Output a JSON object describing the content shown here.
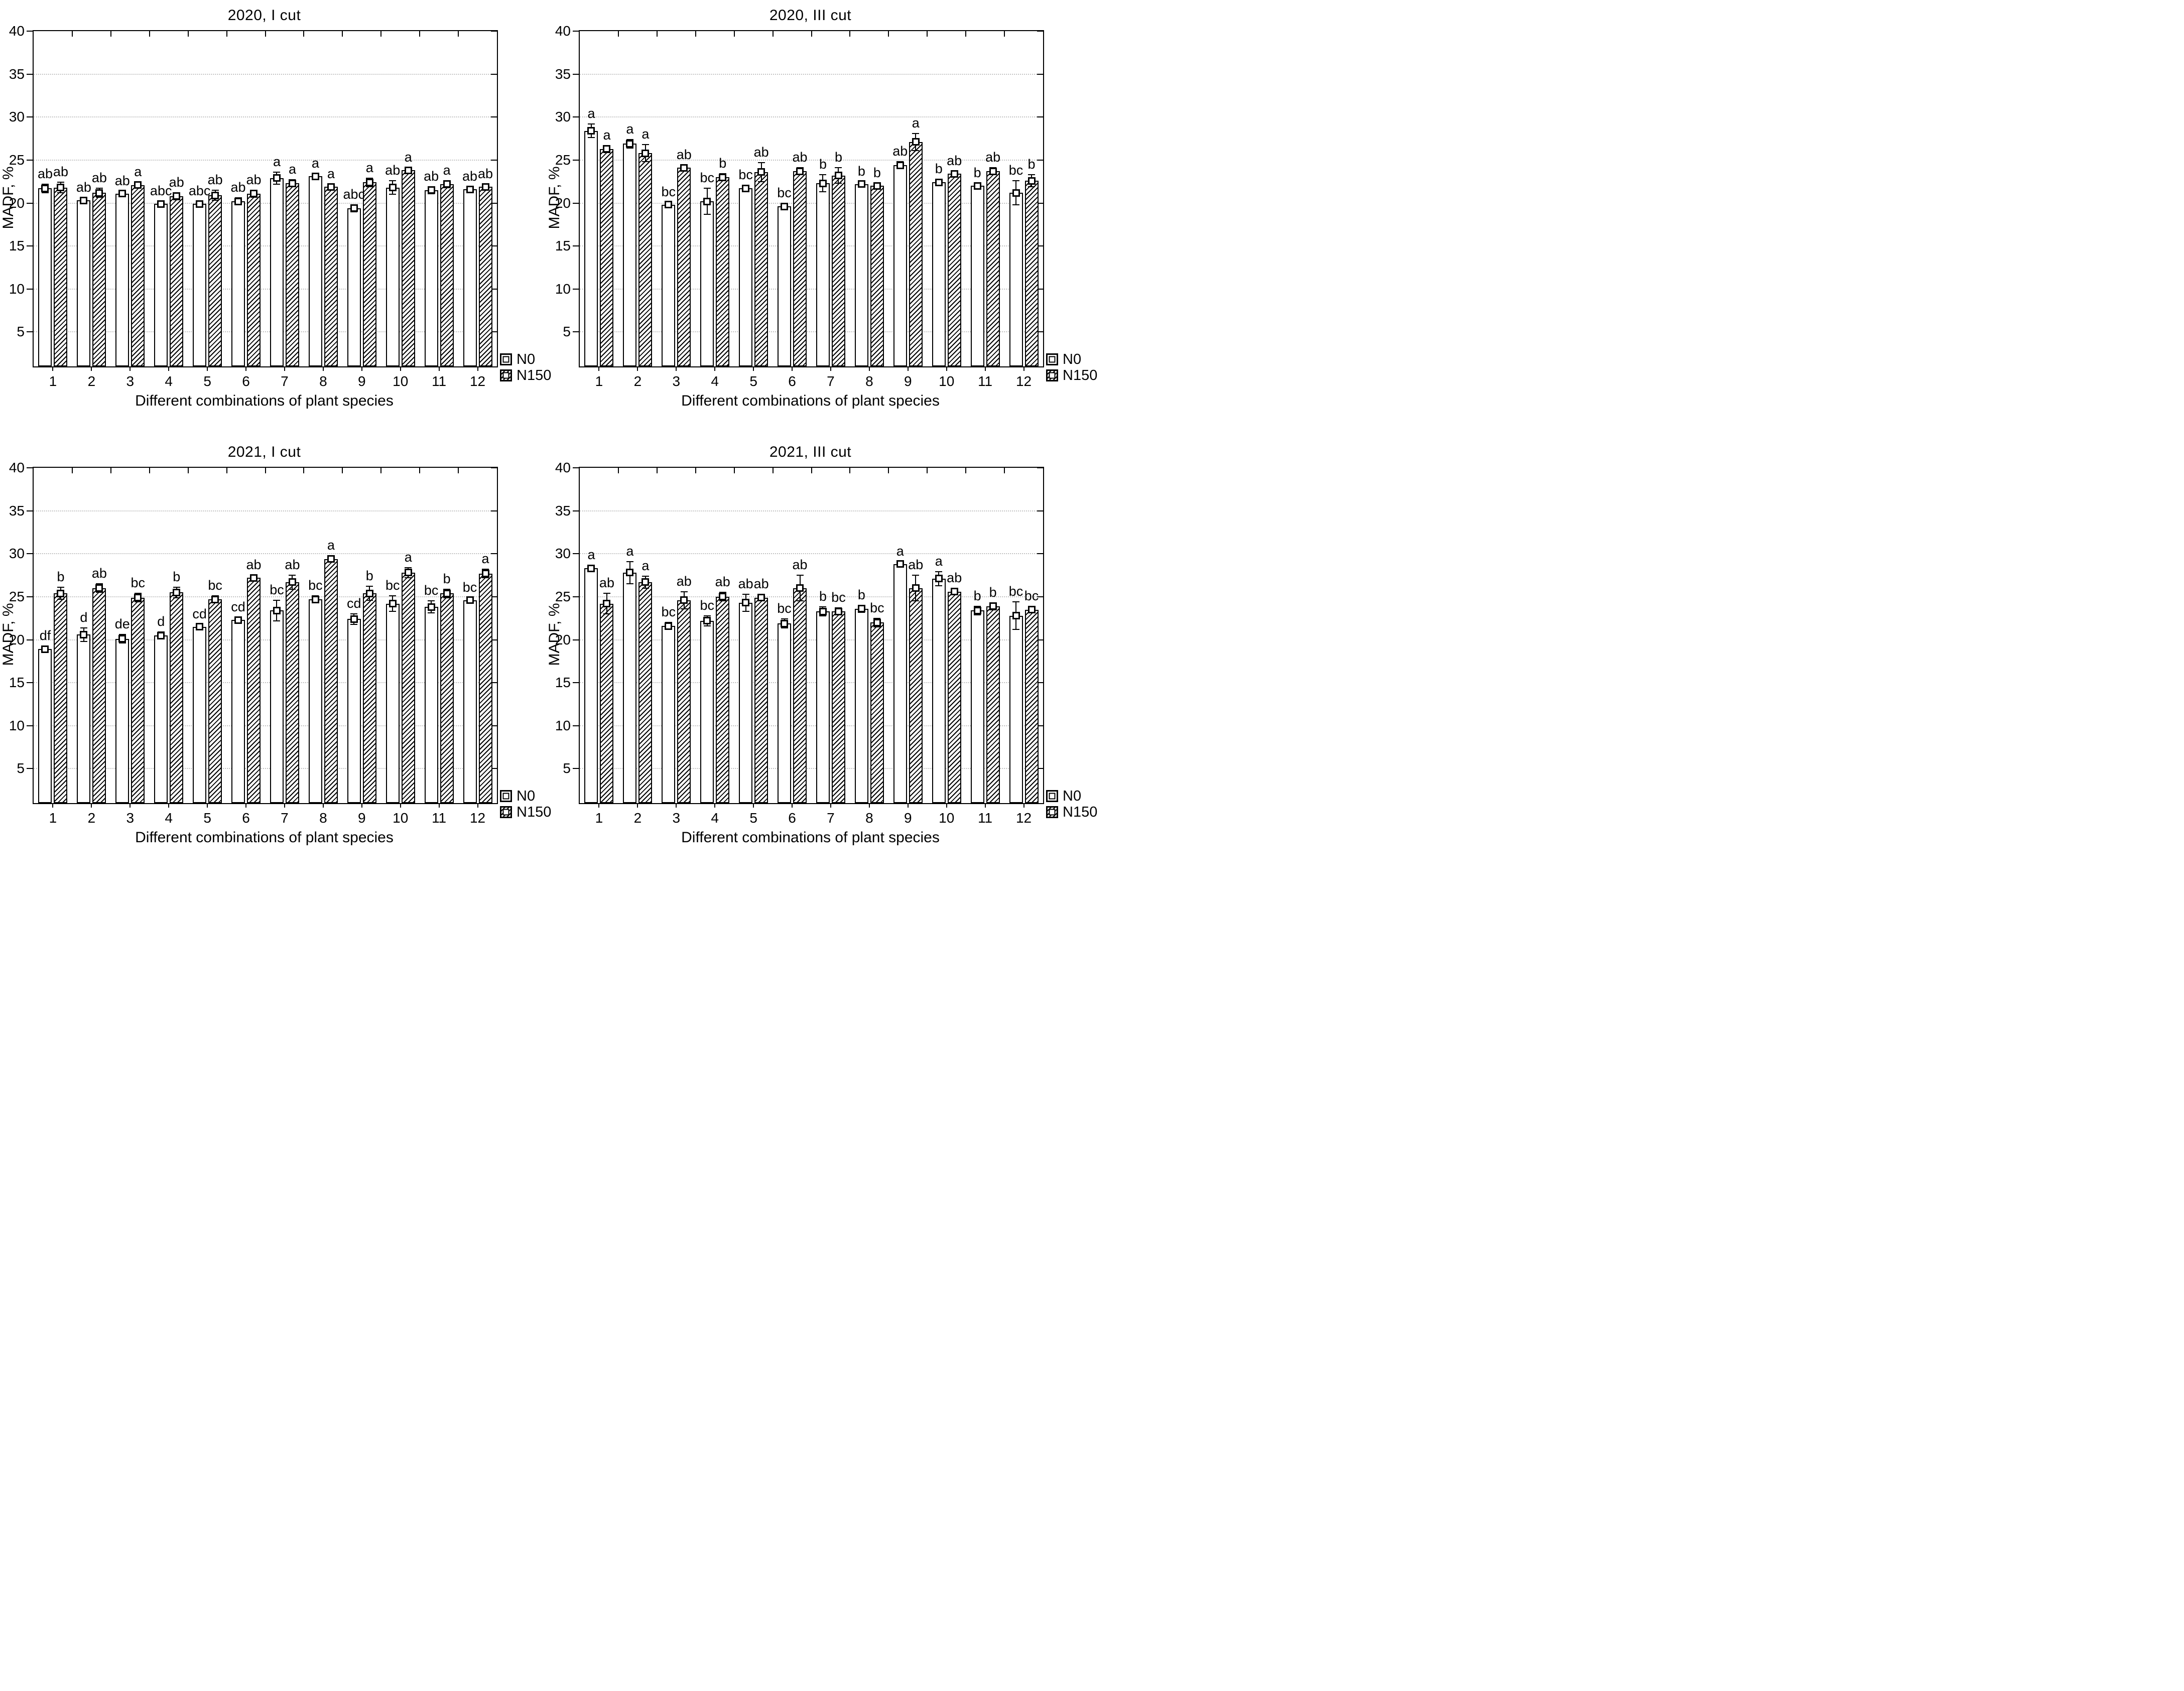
{
  "figure": {
    "y_axis_label": "MADF, %",
    "x_axis_label": "Different combinations of plant species",
    "y_ticks": [
      5,
      10,
      15,
      20,
      25,
      30,
      35,
      40
    ],
    "x_categories": [
      "1",
      "2",
      "3",
      "4",
      "5",
      "6",
      "7",
      "8",
      "9",
      "10",
      "11",
      "12"
    ],
    "legend": [
      {
        "label": "N0",
        "swatch": "open-square-marker"
      },
      {
        "label": "N150",
        "swatch": "hatched-square-marker"
      }
    ],
    "colors": {
      "bar_fill": "#ffffff",
      "bar_border": "#000000",
      "gridline": "#c2c2c2",
      "text": "#000000"
    }
  },
  "chart_data": [
    {
      "type": "bar",
      "title": "2020, I cut",
      "xlabel": "Different combinations of plant species",
      "ylabel": "MADF, %",
      "ylim": [
        1,
        40
      ],
      "grid": "horizontal-dotted",
      "legend_position": "bottom-right",
      "categories": [
        "1",
        "2",
        "3",
        "4",
        "5",
        "6",
        "7",
        "8",
        "9",
        "10",
        "11",
        "12"
      ],
      "series": [
        {
          "name": "N0",
          "values": [
            21.7,
            20.3,
            21.1,
            19.9,
            19.9,
            20.2,
            22.9,
            23.1,
            19.4,
            21.8,
            21.5,
            21.6
          ],
          "errors": [
            0.5,
            0.3,
            0.3,
            0.3,
            0.3,
            0.4,
            0.7,
            0.3,
            0.4,
            0.8,
            0.4,
            0.3
          ],
          "letters": [
            "ab",
            "ab",
            "ab",
            "abc",
            "abc",
            "ab",
            "a",
            "a",
            "abc",
            "ab",
            "ab",
            "ab"
          ]
        },
        {
          "name": "N150",
          "values": [
            21.8,
            21.2,
            22.1,
            20.8,
            20.9,
            21.1,
            22.3,
            21.9,
            22.4,
            23.8,
            22.2,
            21.9
          ],
          "errors": [
            0.6,
            0.5,
            0.3,
            0.4,
            0.6,
            0.4,
            0.4,
            0.3,
            0.5,
            0.3,
            0.4,
            0.3
          ],
          "letters": [
            "ab",
            "ab",
            "a",
            "ab",
            "ab",
            "ab",
            "a",
            "a",
            "a",
            "a",
            "a",
            "ab"
          ]
        }
      ]
    },
    {
      "type": "bar",
      "title": "2020, III cut",
      "xlabel": "Different combinations of plant species",
      "ylabel": "MADF, %",
      "ylim": [
        1,
        40
      ],
      "grid": "horizontal-dotted",
      "legend_position": "bottom-right",
      "categories": [
        "1",
        "2",
        "3",
        "4",
        "5",
        "6",
        "7",
        "8",
        "9",
        "10",
        "11",
        "12"
      ],
      "series": [
        {
          "name": "N0",
          "values": [
            28.4,
            26.9,
            19.8,
            20.2,
            21.7,
            19.6,
            22.3,
            22.2,
            24.4,
            22.4,
            22.0,
            21.2
          ],
          "errors": [
            0.8,
            0.5,
            0.3,
            1.5,
            0.4,
            0.4,
            1.0,
            0.3,
            0.4,
            0.4,
            0.3,
            1.4
          ],
          "letters": [
            "a",
            "a",
            "bc",
            "bc",
            "bc",
            "bc",
            "b",
            "b",
            "ab",
            "b",
            "b",
            "bc"
          ]
        },
        {
          "name": "N150",
          "values": [
            26.3,
            25.8,
            24.1,
            23.0,
            23.6,
            23.7,
            23.2,
            22.0,
            27.1,
            23.4,
            23.7,
            22.6
          ],
          "errors": [
            0.4,
            1.0,
            0.3,
            0.4,
            1.1,
            0.4,
            0.9,
            0.3,
            1.0,
            0.3,
            0.4,
            0.7
          ],
          "letters": [
            "a",
            "a",
            "ab",
            "b",
            "ab",
            "ab",
            "b",
            "b",
            "a",
            "ab",
            "ab",
            "b"
          ]
        }
      ]
    },
    {
      "type": "bar",
      "title": "2021, I cut",
      "xlabel": "Different combinations of plant species",
      "ylabel": "MADF, %",
      "ylim": [
        1,
        40
      ],
      "grid": "horizontal-dotted",
      "legend_position": "bottom-right",
      "categories": [
        "1",
        "2",
        "3",
        "4",
        "5",
        "6",
        "7",
        "8",
        "9",
        "10",
        "11",
        "12"
      ],
      "series": [
        {
          "name": "N0",
          "values": [
            18.9,
            20.6,
            20.1,
            20.5,
            21.5,
            22.3,
            23.4,
            24.7,
            22.4,
            24.2,
            23.8,
            24.6
          ],
          "errors": [
            0.4,
            0.8,
            0.5,
            0.4,
            0.3,
            0.3,
            1.2,
            0.4,
            0.6,
            0.9,
            0.7,
            0.3
          ],
          "letters": [
            "df",
            "d",
            "de",
            "d",
            "cd",
            "cd",
            "bc",
            "bc",
            "cd",
            "bc",
            "bc",
            "bc"
          ]
        },
        {
          "name": "N150",
          "values": [
            25.4,
            26.0,
            24.9,
            25.5,
            24.7,
            27.2,
            26.7,
            29.4,
            25.4,
            27.8,
            25.4,
            27.7
          ],
          "errors": [
            0.7,
            0.5,
            0.5,
            0.6,
            0.4,
            0.3,
            0.8,
            0.4,
            0.8,
            0.6,
            0.5,
            0.5
          ],
          "letters": [
            "b",
            "ab",
            "bc",
            "b",
            "bc",
            "ab",
            "ab",
            "a",
            "b",
            "a",
            "b",
            "a"
          ]
        }
      ]
    },
    {
      "type": "bar",
      "title": "2021, III cut",
      "xlabel": "Different combinations of plant species",
      "ylabel": "MADF, %",
      "ylim": [
        1,
        40
      ],
      "grid": "horizontal-dotted",
      "legend_position": "bottom-right",
      "categories": [
        "1",
        "2",
        "3",
        "4",
        "5",
        "6",
        "7",
        "8",
        "9",
        "10",
        "11",
        "12"
      ],
      "series": [
        {
          "name": "N0",
          "values": [
            28.3,
            27.8,
            21.6,
            22.2,
            24.3,
            21.9,
            23.3,
            23.6,
            28.8,
            27.1,
            23.4,
            22.8
          ],
          "errors": [
            0.4,
            1.3,
            0.4,
            0.6,
            1.0,
            0.5,
            0.5,
            0.4,
            0.3,
            0.8,
            0.5,
            1.6
          ],
          "letters": [
            "a",
            "a",
            "bc",
            "bc",
            "ab",
            "bc",
            "b",
            "b",
            "a",
            "a",
            "b",
            "bc"
          ]
        },
        {
          "name": "N150",
          "values": [
            24.2,
            26.7,
            24.6,
            25.0,
            24.9,
            26.0,
            23.3,
            22.0,
            26.0,
            25.6,
            23.9,
            23.5
          ],
          "errors": [
            1.2,
            0.7,
            1.0,
            0.5,
            0.4,
            1.5,
            0.4,
            0.5,
            1.5,
            0.4,
            0.4,
            0.4
          ],
          "letters": [
            "ab",
            "a",
            "ab",
            "ab",
            "ab",
            "ab",
            "bc",
            "bc",
            "ab",
            "ab",
            "b",
            "bc"
          ]
        }
      ]
    }
  ]
}
